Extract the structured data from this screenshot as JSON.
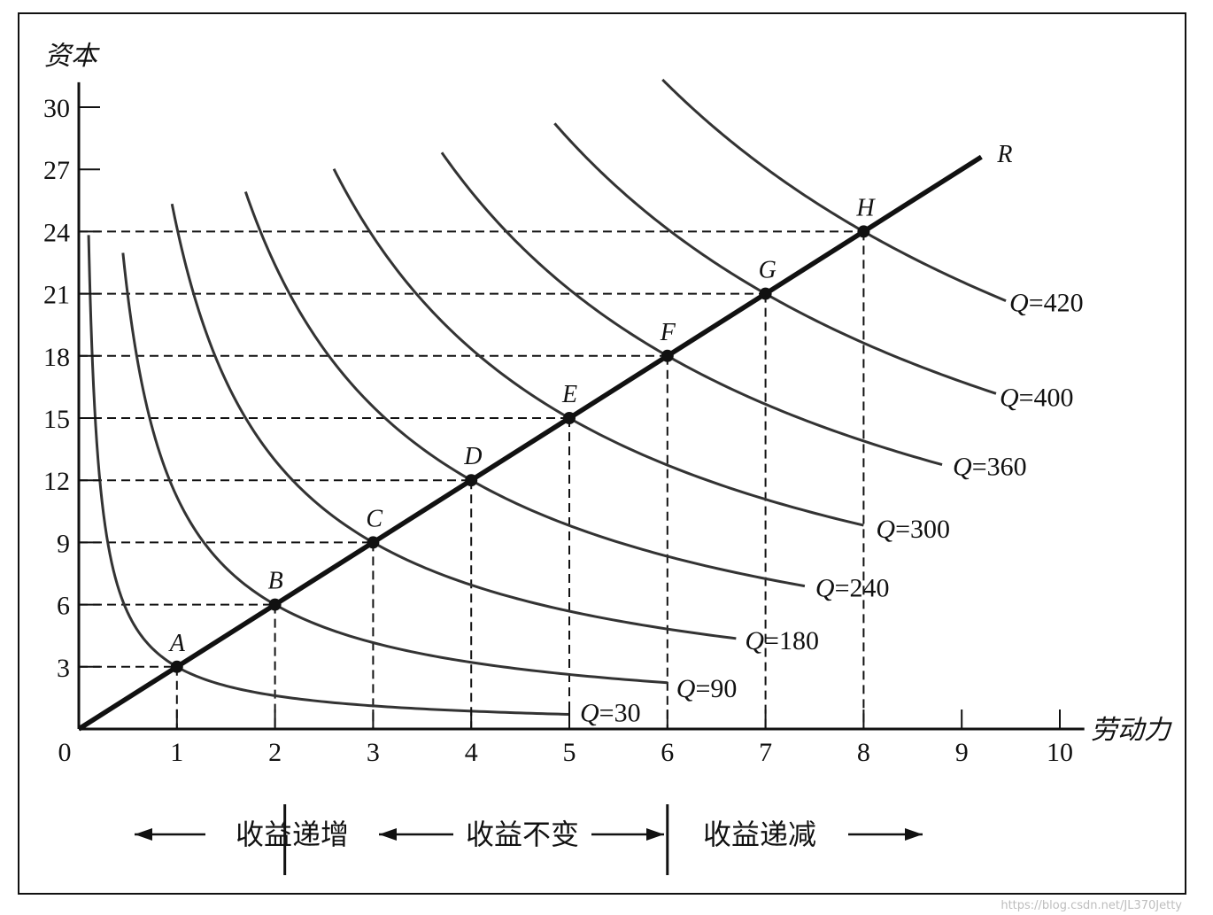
{
  "chart_data": {
    "type": "line",
    "xlabel": "劳动力",
    "ylabel": "资本",
    "xlim": [
      0,
      10
    ],
    "ylim": [
      0,
      30
    ],
    "origin_label": "0",
    "x_ticks": [
      1,
      2,
      3,
      4,
      5,
      6,
      7,
      8,
      9,
      10
    ],
    "y_ticks": [
      3,
      6,
      9,
      12,
      15,
      18,
      21,
      24,
      27,
      30
    ],
    "grid": false,
    "expansion_path": {
      "name": "R",
      "x": [
        0,
        9.2
      ],
      "y": [
        0,
        27.6
      ]
    },
    "points": [
      {
        "label": "A",
        "x": 1,
        "y": 3
      },
      {
        "label": "B",
        "x": 2,
        "y": 6
      },
      {
        "label": "C",
        "x": 3,
        "y": 9
      },
      {
        "label": "D",
        "x": 4,
        "y": 12
      },
      {
        "label": "E",
        "x": 5,
        "y": 15
      },
      {
        "label": "F",
        "x": 6,
        "y": 18
      },
      {
        "label": "G",
        "x": 7,
        "y": 21
      },
      {
        "label": "H",
        "x": 8,
        "y": 24
      }
    ],
    "series": [
      {
        "name": "Q=30",
        "q_symbol": "Q",
        "q_text": "=30",
        "pass_x": 1,
        "pass_y": 3,
        "x_range": [
          0.1,
          5.0
        ]
      },
      {
        "name": "Q=90",
        "q_symbol": "Q",
        "q_text": "=90",
        "pass_x": 2,
        "pass_y": 6,
        "x_range": [
          0.45,
          6.0
        ]
      },
      {
        "name": "Q=180",
        "q_symbol": "Q",
        "q_text": "=180",
        "pass_x": 3,
        "pass_y": 9,
        "x_range": [
          0.95,
          6.7
        ]
      },
      {
        "name": "Q=240",
        "q_symbol": "Q",
        "q_text": "=240",
        "pass_x": 4,
        "pass_y": 12,
        "x_range": [
          1.7,
          7.4
        ]
      },
      {
        "name": "Q=300",
        "q_symbol": "Q",
        "q_text": "=300",
        "pass_x": 5,
        "pass_y": 15,
        "x_range": [
          2.6,
          8.0
        ]
      },
      {
        "name": "Q=360",
        "q_symbol": "Q",
        "q_text": "=360",
        "pass_x": 6,
        "pass_y": 18,
        "x_range": [
          3.7,
          8.8
        ]
      },
      {
        "name": "Q=400",
        "q_symbol": "Q",
        "q_text": "=400",
        "pass_x": 7,
        "pass_y": 21,
        "x_range": [
          4.85,
          9.35
        ]
      },
      {
        "name": "Q=420",
        "q_symbol": "Q",
        "q_text": "=420",
        "pass_x": 8,
        "pass_y": 24,
        "x_range": [
          5.95,
          9.45
        ]
      }
    ],
    "regions": [
      {
        "label": "收益递增",
        "arrows": "left"
      },
      {
        "label": "收益不变",
        "arrows": "both"
      },
      {
        "label": "收益递减",
        "arrows": "right"
      }
    ]
  },
  "watermark": "https://blog.csdn.net/JL370Jetty"
}
